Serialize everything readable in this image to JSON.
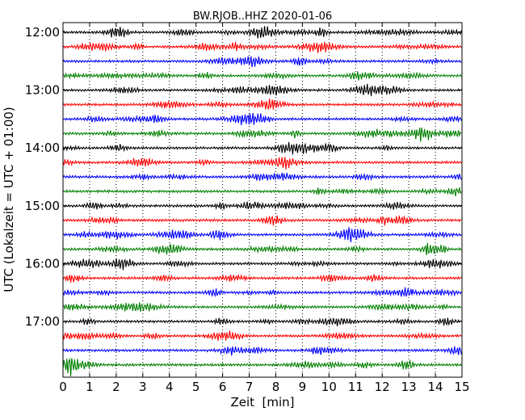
{
  "chart_data": {
    "type": "line",
    "title": "BW.RJOB..HHZ 2020-01-06",
    "xlabel": "Zeit  [min]",
    "ylabel": "UTC (Lokalzeit = UTC + 01:00)",
    "xlim": [
      0,
      15
    ],
    "x_ticks": [
      "0",
      "1",
      "2",
      "3",
      "4",
      "5",
      "6",
      "7",
      "8",
      "9",
      "10",
      "11",
      "12",
      "13",
      "14",
      "15"
    ],
    "y_ticks": [
      "12:00",
      "13:00",
      "14:00",
      "15:00",
      "16:00",
      "17:00"
    ],
    "grid": "vertical dotted at each minute",
    "trace_colors": [
      "#000000",
      "#ff0000",
      "#0000ff",
      "#008000"
    ],
    "row_count": 24
  }
}
